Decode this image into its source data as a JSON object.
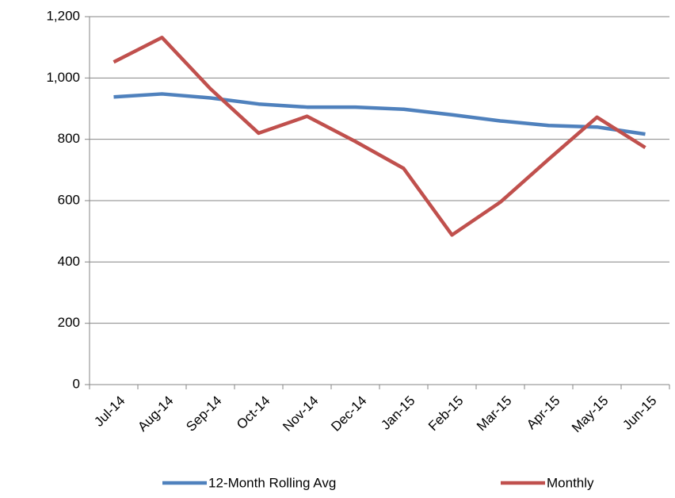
{
  "chart_data": {
    "type": "line",
    "categories": [
      "Jul-14",
      "Aug-14",
      "Sep-14",
      "Oct-14",
      "Nov-14",
      "Dec-14",
      "Jan-15",
      "Feb-15",
      "Mar-15",
      "Apr-15",
      "May-15",
      "Jun-15"
    ],
    "series": [
      {
        "name": "12-Month Rolling Avg",
        "color": "#4f81bd",
        "values": [
          938,
          948,
          935,
          915,
          905,
          905,
          898,
          880,
          860,
          845,
          840,
          817
        ]
      },
      {
        "name": "Monthly",
        "color": "#c0504d",
        "values": [
          1052,
          1132,
          965,
          820,
          875,
          793,
          705,
          488,
          595,
          735,
          872,
          773
        ]
      }
    ],
    "ylim": [
      0,
      1200
    ],
    "yticks": [
      0,
      200,
      400,
      600,
      800,
      {
        "value": 1000,
        "label": "1,000"
      },
      {
        "value": 1200,
        "label": "1,200"
      }
    ],
    "grid": true,
    "legend": "bottom"
  }
}
